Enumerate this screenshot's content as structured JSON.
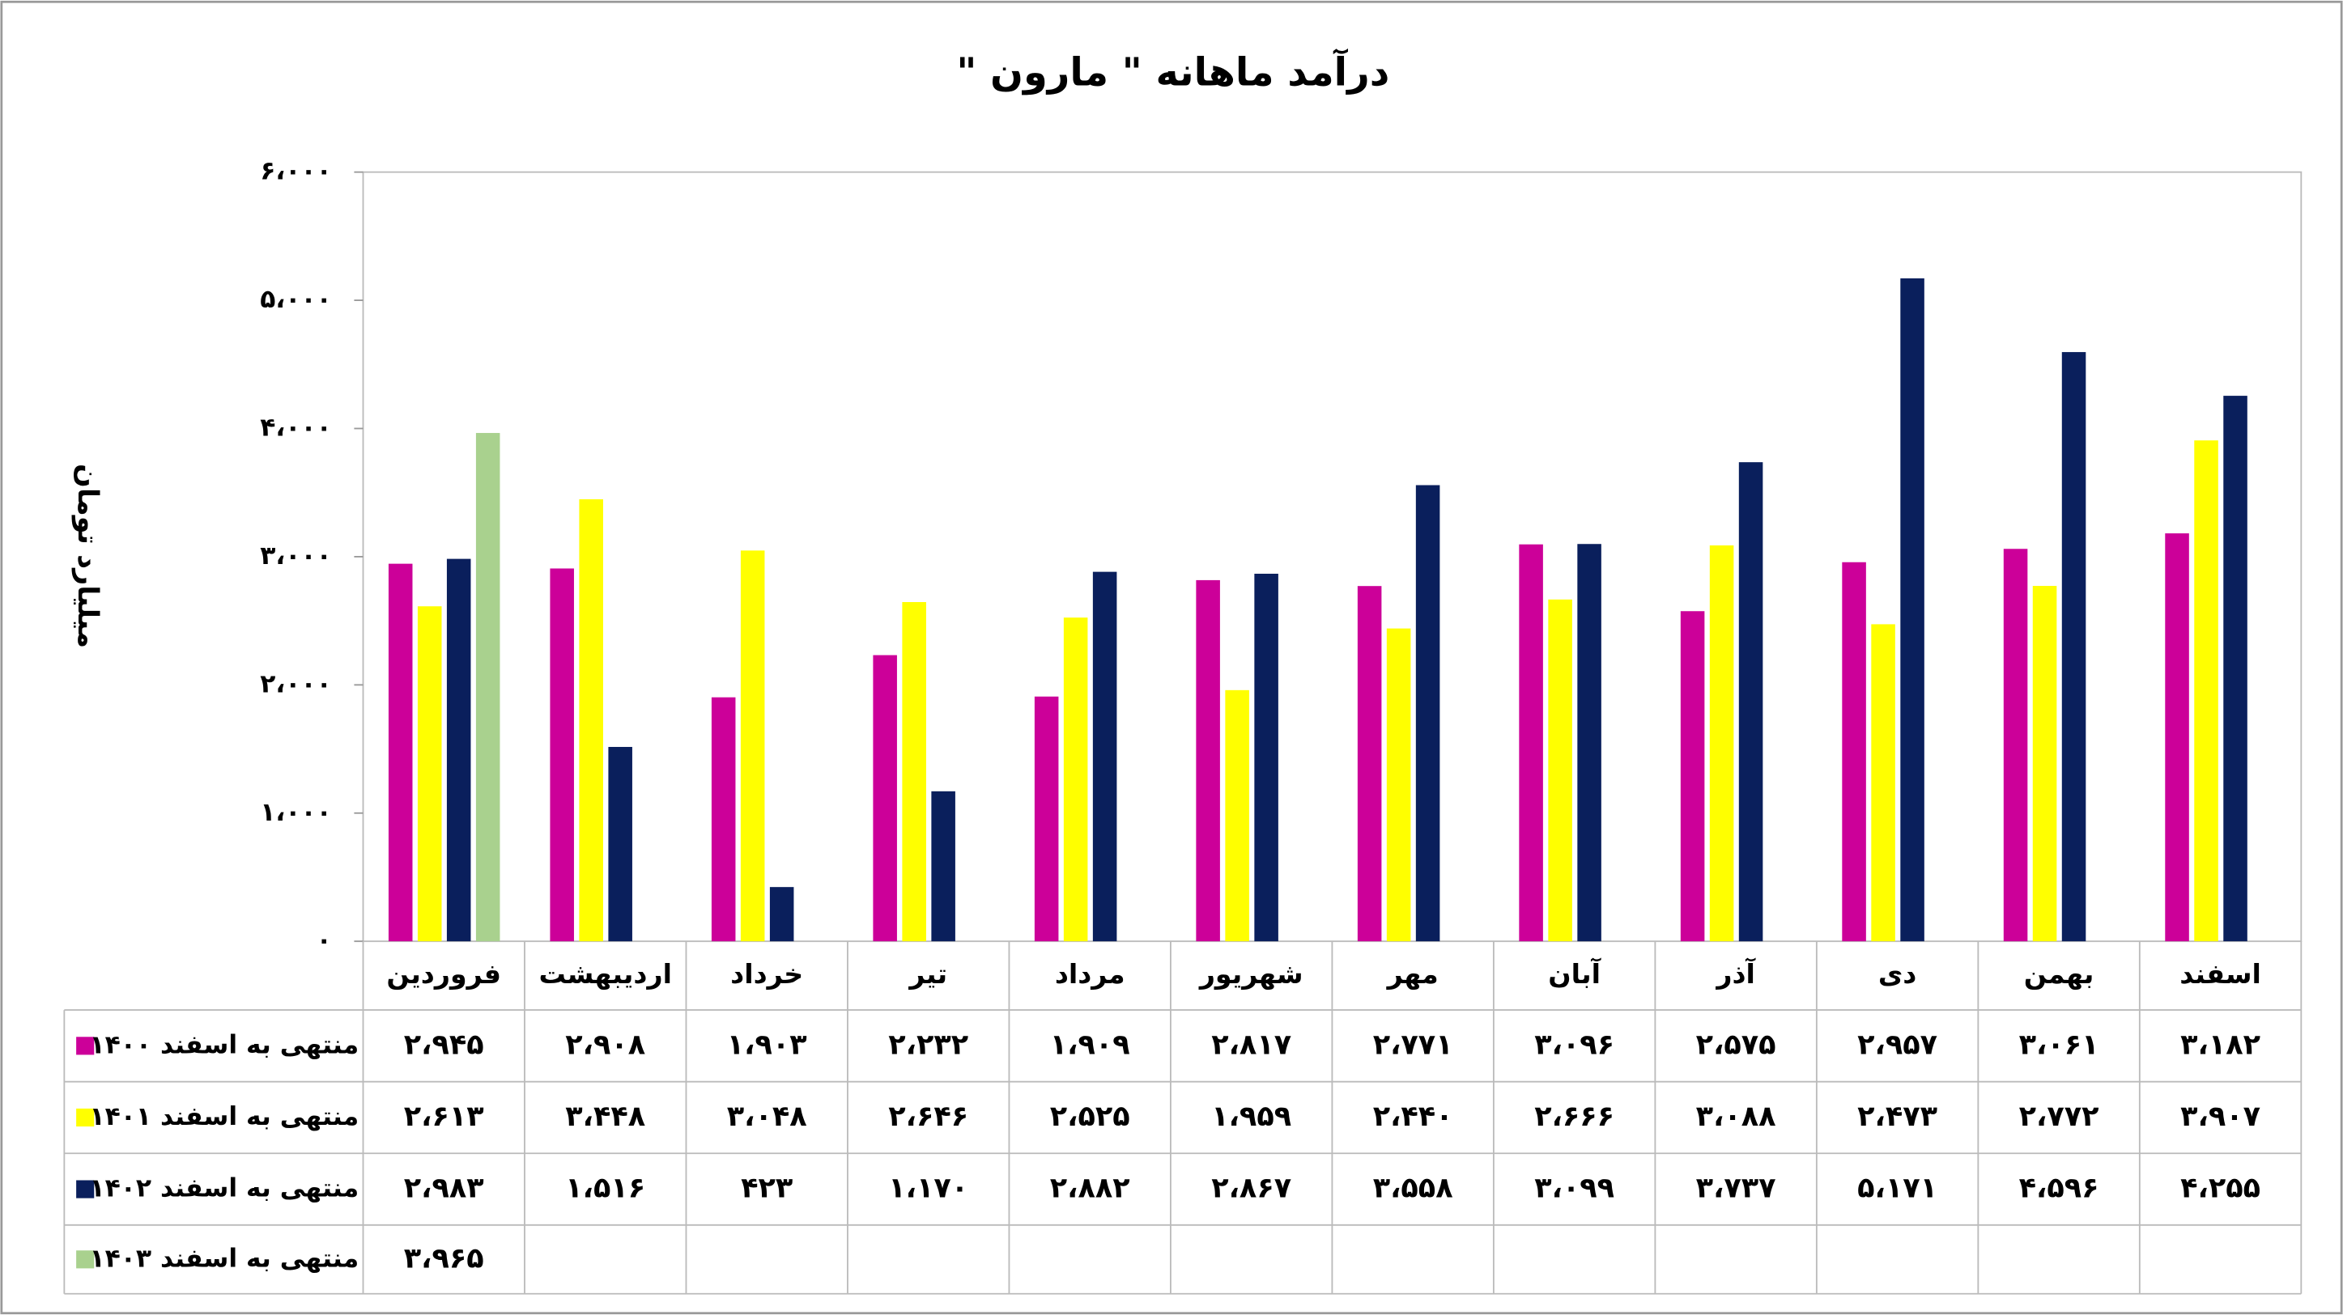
{
  "chart_data": {
    "type": "bar",
    "title": "درآمد ماهانه \" مارون \"",
    "y_label": "میلیارد تومان",
    "categories": [
      "فروردین",
      "اردیبهشت",
      "خرداد",
      "تیر",
      "مرداد",
      "شهریور",
      "مهر",
      "آبان",
      "آذر",
      "دی",
      "بهمن",
      "اسفند"
    ],
    "series": [
      {
        "name": "منتهی به اسفند ۱۴۰۰",
        "color": "#cc0099",
        "values": [
          2945,
          2908,
          1903,
          2232,
          1909,
          2817,
          2771,
          3096,
          2575,
          2957,
          3061,
          3182
        ],
        "value_labels": [
          "۲،۹۴۵",
          "۲،۹۰۸",
          "۱،۹۰۳",
          "۲،۲۳۲",
          "۱،۹۰۹",
          "۲،۸۱۷",
          "۲،۷۷۱",
          "۳،۰۹۶",
          "۲،۵۷۵",
          "۲،۹۵۷",
          "۳،۰۶۱",
          "۳،۱۸۲"
        ]
      },
      {
        "name": "منتهی به اسفند ۱۴۰۱",
        "color": "#ffff00",
        "values": [
          2613,
          3448,
          3048,
          2646,
          2525,
          1959,
          2440,
          2666,
          3088,
          2473,
          2772,
          3907
        ],
        "value_labels": [
          "۲،۶۱۳",
          "۳،۴۴۸",
          "۳،۰۴۸",
          "۲،۶۴۶",
          "۲،۵۲۵",
          "۱،۹۵۹",
          "۲،۴۴۰",
          "۲،۶۶۶",
          "۳،۰۸۸",
          "۲،۴۷۳",
          "۲،۷۷۲",
          "۳،۹۰۷"
        ]
      },
      {
        "name": "منتهی به اسفند ۱۴۰۲",
        "color": "#0a1f5c",
        "values": [
          2983,
          1516,
          423,
          1170,
          2882,
          2867,
          3558,
          3099,
          3737,
          5171,
          4596,
          4255
        ],
        "value_labels": [
          "۲،۹۸۳",
          "۱،۵۱۶",
          "۴۲۳",
          "۱،۱۷۰",
          "۲،۸۸۲",
          "۲،۸۶۷",
          "۳،۵۵۸",
          "۳،۰۹۹",
          "۳،۷۳۷",
          "۵،۱۷۱",
          "۴،۵۹۶",
          "۴،۲۵۵"
        ]
      },
      {
        "name": "منتهی به اسفند ۱۴۰۳",
        "color": "#a9d18e",
        "values": [
          3965,
          null,
          null,
          null,
          null,
          null,
          null,
          null,
          null,
          null,
          null,
          null
        ],
        "value_labels": [
          "۳،۹۶۵",
          null,
          null,
          null,
          null,
          null,
          null,
          null,
          null,
          null,
          null,
          null
        ]
      }
    ],
    "ylim": [
      0,
      6000
    ],
    "yticks": [
      {
        "value": 0,
        "label": "۰"
      },
      {
        "value": 1000,
        "label": "۱،۰۰۰"
      },
      {
        "value": 2000,
        "label": "۲،۰۰۰"
      },
      {
        "value": 3000,
        "label": "۳،۰۰۰"
      },
      {
        "value": 4000,
        "label": "۴،۰۰۰"
      },
      {
        "value": 5000,
        "label": "۵،۰۰۰"
      },
      {
        "value": 6000,
        "label": "۶،۰۰۰"
      }
    ],
    "grid": false
  }
}
